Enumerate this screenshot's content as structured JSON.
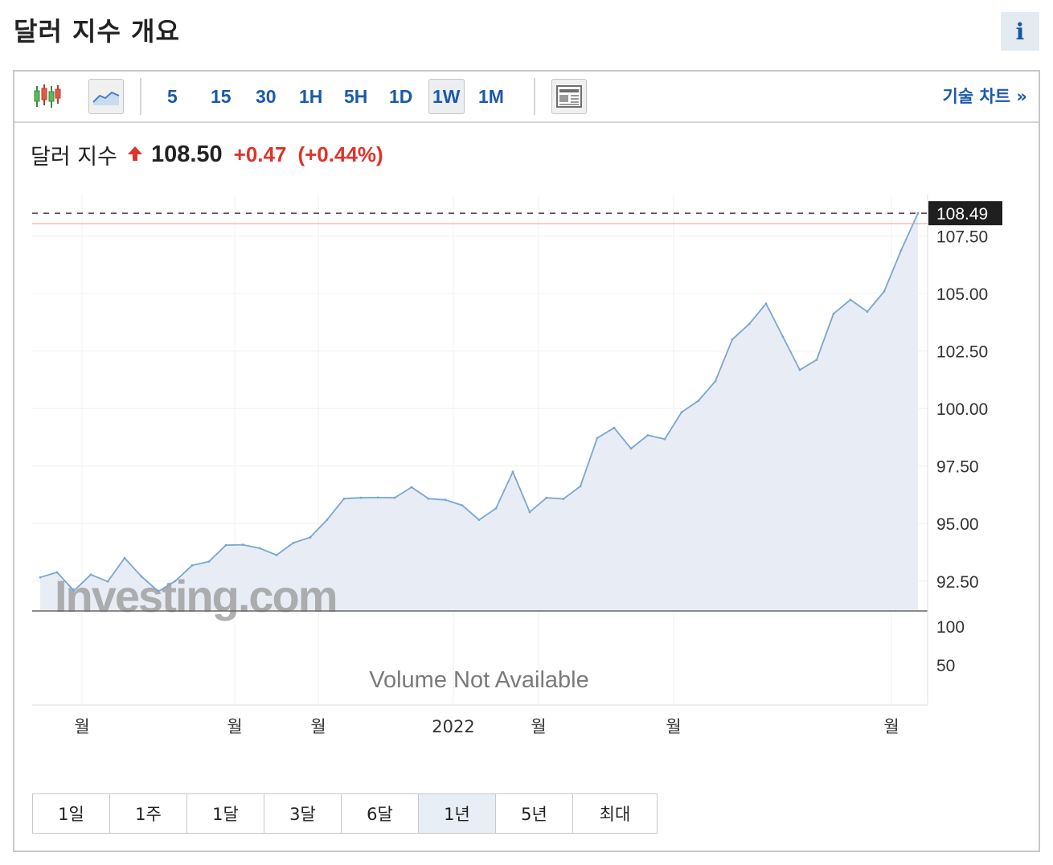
{
  "page": {
    "title": "달러 지수 개요",
    "info_label": "i"
  },
  "toolbar": {
    "intervals": [
      "5",
      "15",
      "30",
      "1H",
      "5H",
      "1D",
      "1W",
      "1M"
    ],
    "active_interval": "1W",
    "tech_chart_label": "기술 차트 »"
  },
  "quote": {
    "name": "달러 지수",
    "price": "108.50",
    "change": "+0.47",
    "change_pct": "(+0.44%)",
    "direction": "up"
  },
  "chart_data": {
    "type": "area",
    "y_ticks": [
      "107.50",
      "105.00",
      "102.50",
      "100.00",
      "97.50",
      "95.00",
      "92.50"
    ],
    "ylim": [
      91.2,
      109.3
    ],
    "last_value_label": "108.49",
    "last_value": 108.49,
    "reference_value": 108.03,
    "volume_ticks": [
      "100",
      "50"
    ],
    "volume_note": "Volume Not Available",
    "x_labels": [
      "월",
      "월",
      "월",
      "2022",
      "월",
      "월",
      "월"
    ],
    "watermark": "Investing.com",
    "values": [
      92.66,
      92.88,
      92.08,
      92.78,
      92.48,
      93.5,
      92.7,
      92.05,
      92.5,
      93.18,
      93.35,
      94.06,
      94.08,
      93.93,
      93.63,
      94.16,
      94.4,
      95.17,
      96.08,
      96.12,
      96.13,
      96.12,
      96.58,
      96.08,
      96.03,
      95.79,
      95.16,
      95.66,
      97.25,
      95.5,
      96.12,
      96.07,
      96.62,
      98.72,
      99.16,
      98.26,
      98.84,
      98.67,
      99.84,
      100.34,
      101.19,
      103.0,
      103.67,
      104.56,
      103.12,
      101.68,
      102.12,
      104.12,
      104.73,
      104.21,
      105.09,
      106.87,
      108.49
    ],
    "grid": true
  },
  "ranges": {
    "buttons": [
      "1일",
      "1주",
      "1달",
      "3달",
      "6달",
      "1년",
      "5년",
      "최대"
    ],
    "active": "1년"
  },
  "colors": {
    "line": "#7aa6d2",
    "fill": "#e8edf5",
    "up": "#e0332b",
    "link": "#1b5aa8",
    "last_label_bg": "#1f1f1f"
  },
  "icons": [
    "candlestick-icon",
    "area-chart-icon",
    "news-layout-icon",
    "up-arrow-icon",
    "info-icon"
  ]
}
